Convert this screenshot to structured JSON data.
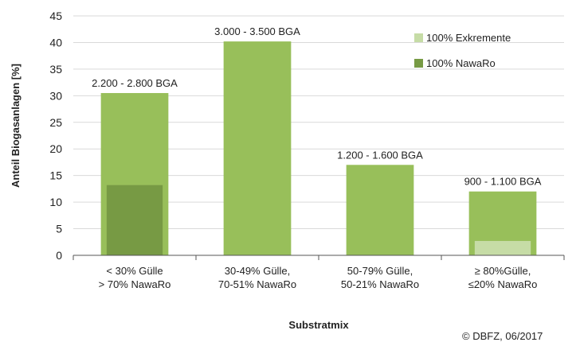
{
  "chart_data": {
    "type": "bar",
    "ylabel": "Anteil Biogasanlagen [%]",
    "xlabel": "Substratmix",
    "ylim": [
      0,
      45
    ],
    "yticks": [
      0,
      5,
      10,
      15,
      20,
      25,
      30,
      35,
      40,
      45
    ],
    "grid": true,
    "legend_position": "top-right",
    "categories": [
      [
        "< 30% Gülle",
        "> 70% NawaRo"
      ],
      [
        "30-49% Gülle,",
        "70-51% NawaRo"
      ],
      [
        "50-79% Gülle,",
        "50-21% NawaRo"
      ],
      [
        "≥ 80%Gülle,",
        "≤20% NawaRo"
      ]
    ],
    "totals": [
      30.5,
      40.2,
      17.0,
      12.0
    ],
    "bar_labels": [
      "2.200 - 2.800 BGA",
      "3.000 - 3.500 BGA",
      "1.200 - 1.600 BGA",
      "900 - 1.100 BGA"
    ],
    "series": [
      {
        "name": "100% Exkremente",
        "color": "#c6dca6",
        "values": [
          0,
          0,
          0,
          2.7
        ]
      },
      {
        "name": "100% NawaRo",
        "color": "#779a44",
        "values": [
          13.2,
          0,
          0,
          0
        ]
      }
    ],
    "bar_color": "#98bf5a",
    "source": "© DBFZ, 06/2017"
  }
}
